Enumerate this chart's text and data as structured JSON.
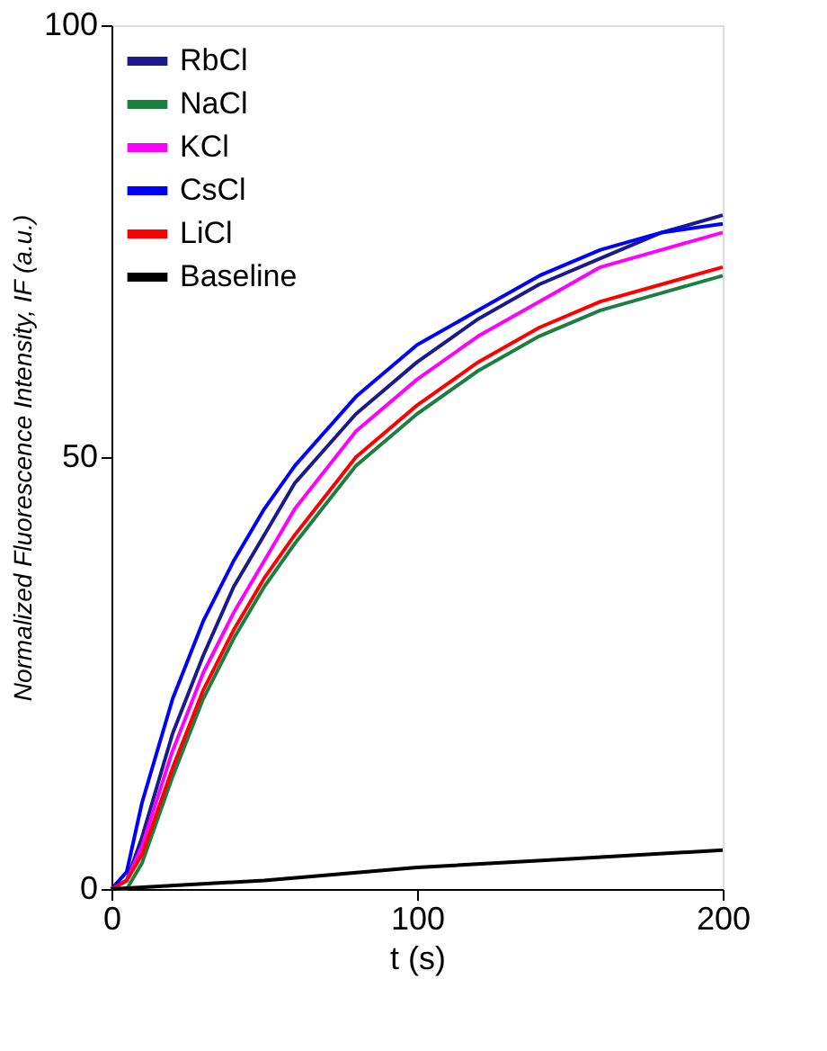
{
  "chart_data": {
    "type": "line",
    "xlabel": "t (s)",
    "ylabel": "Normalized Fluorescence Intensity, IF (a.u.)",
    "xlim": [
      0,
      200
    ],
    "ylim": [
      0,
      100
    ],
    "xticks": [
      0,
      100,
      200
    ],
    "yticks": [
      0,
      50,
      100
    ],
    "grid": false,
    "legend": "top left",
    "line_style": "solid",
    "marker": "none",
    "x": [
      0,
      5,
      10,
      20,
      30,
      40,
      50,
      60,
      80,
      100,
      120,
      140,
      160,
      180,
      200
    ],
    "series": [
      {
        "name": "RbCl",
        "color": "#1a1a8c",
        "values": [
          0,
          1,
          6,
          18,
          27,
          35,
          41,
          47,
          55,
          61,
          66,
          70,
          73,
          76,
          78
        ]
      },
      {
        "name": "NaCl",
        "color": "#1a8040",
        "values": [
          0,
          0,
          3,
          13,
          22,
          29,
          35,
          40,
          49,
          55,
          60,
          64,
          67,
          69,
          71
        ]
      },
      {
        "name": "KCl",
        "color": "#ff00ff",
        "values": [
          0,
          1,
          5,
          16,
          25,
          32,
          38,
          44,
          53,
          59,
          64,
          68,
          72,
          74,
          76
        ]
      },
      {
        "name": "CsCl",
        "color": "#0000ff",
        "values": [
          0,
          2,
          10,
          22,
          31,
          38,
          44,
          49,
          57,
          63,
          67,
          71,
          74,
          76,
          77
        ]
      },
      {
        "name": "LiCl",
        "color": "#ff0000",
        "values": [
          0,
          1,
          4,
          14,
          23,
          30,
          36,
          41,
          50,
          56,
          61,
          65,
          68,
          70,
          72
        ]
      },
      {
        "name": "Baseline",
        "color": "#000000",
        "x": [
          0,
          50,
          100,
          150,
          200
        ],
        "values": [
          0,
          1,
          2.5,
          3.5,
          4.5
        ]
      }
    ]
  }
}
